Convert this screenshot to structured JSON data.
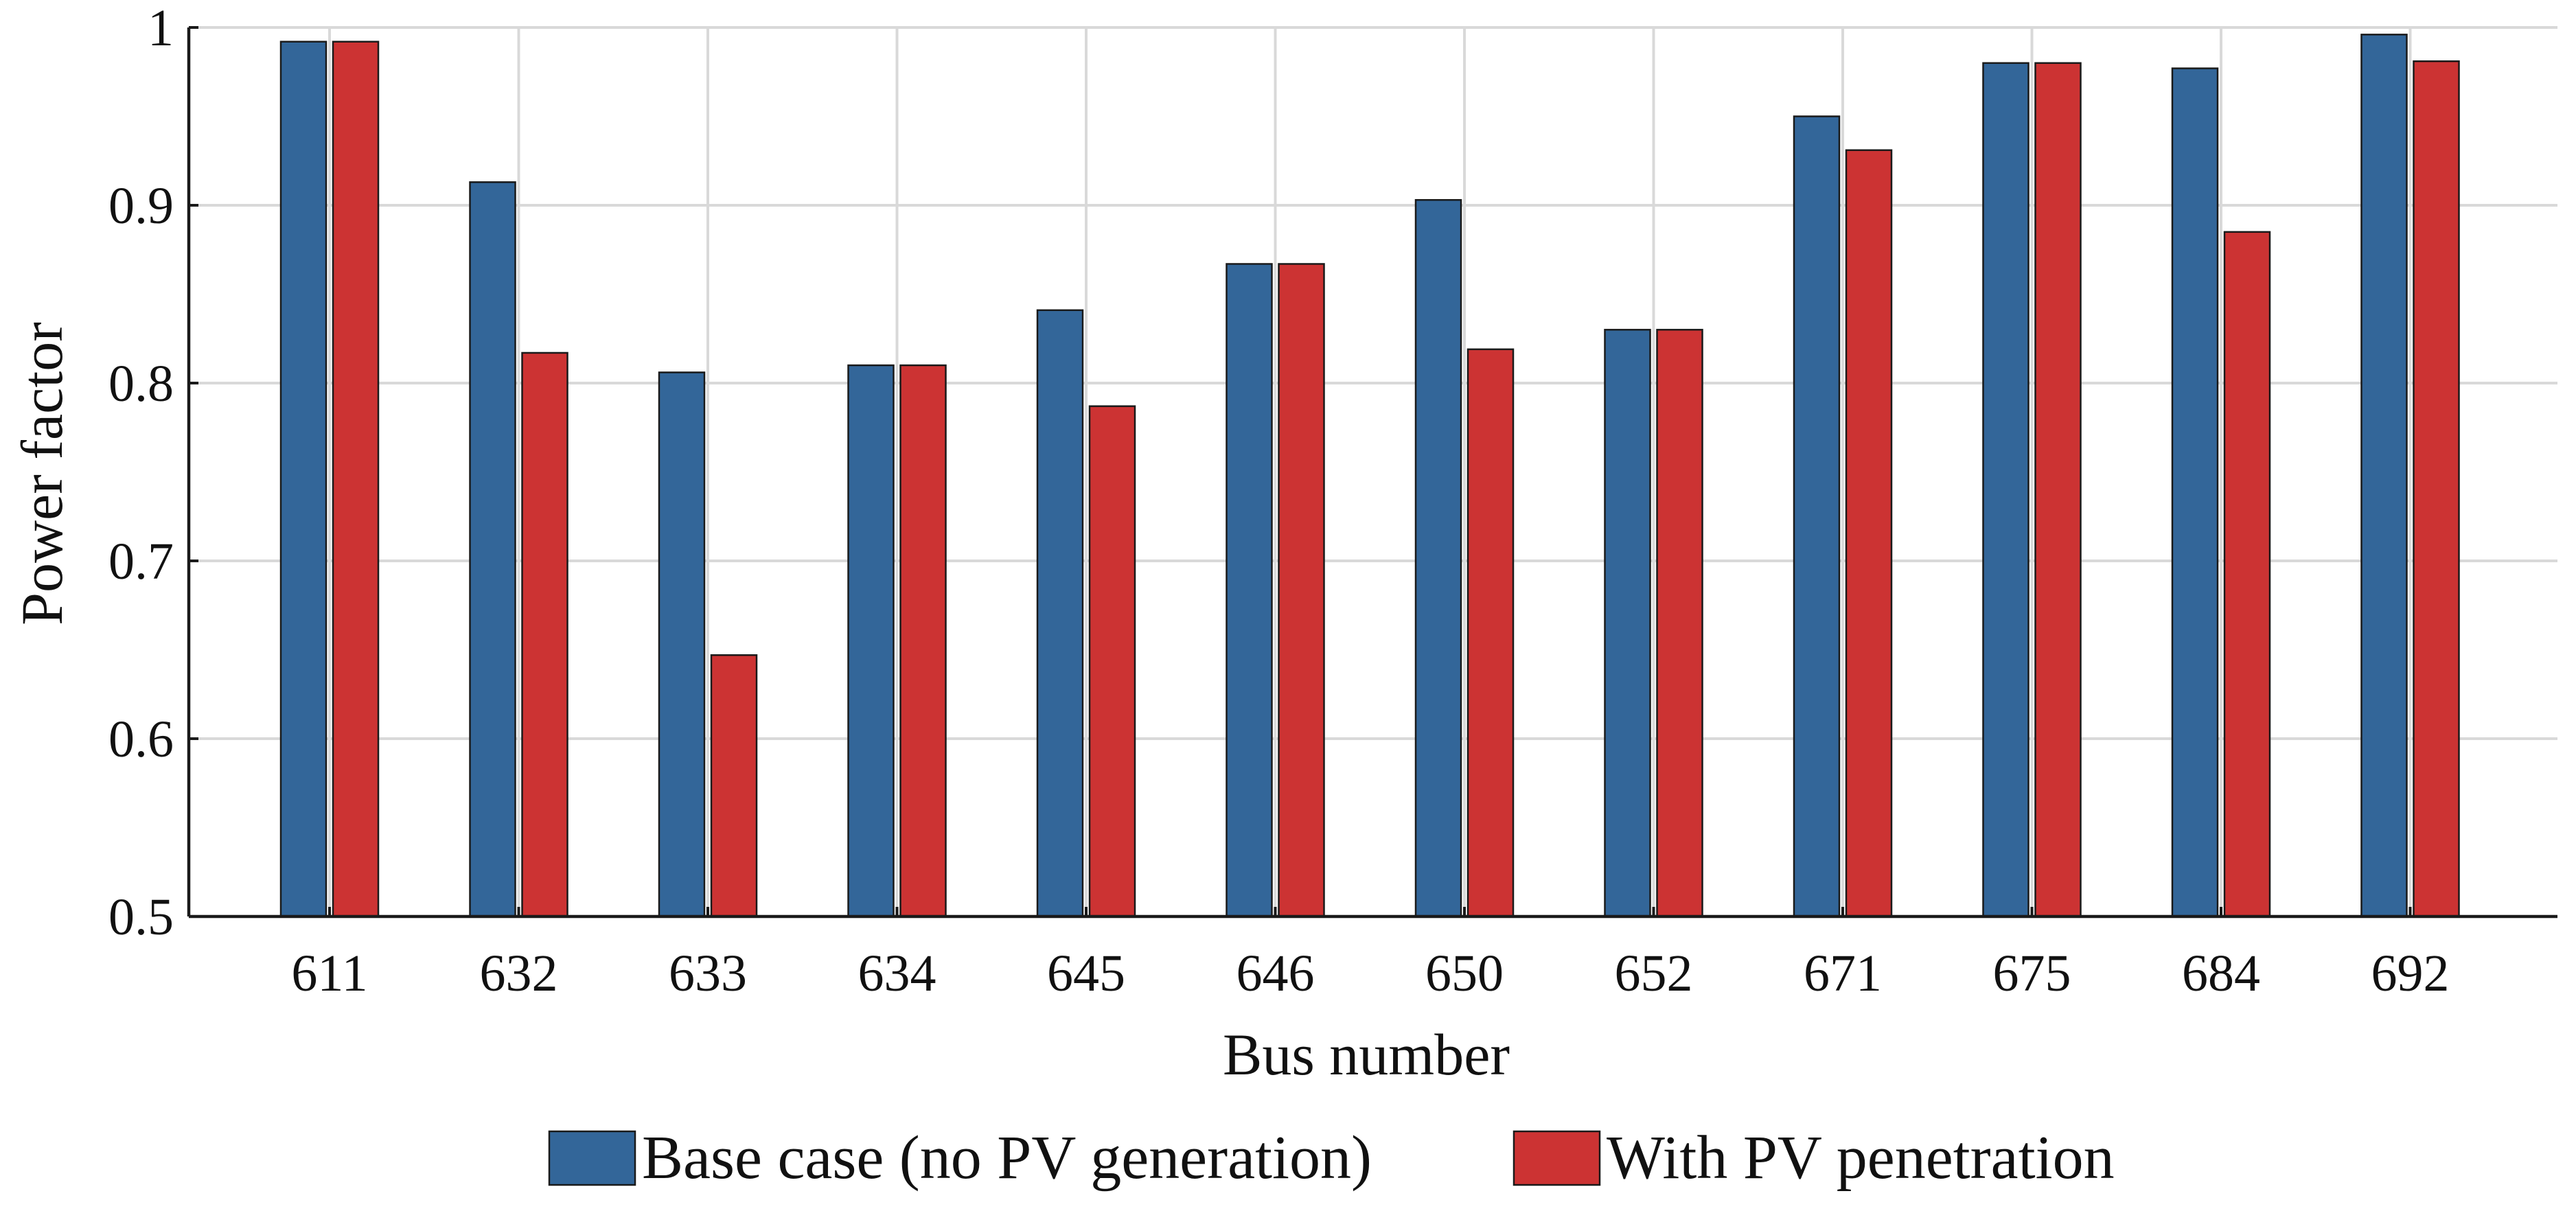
{
  "chart_data": {
    "type": "bar",
    "title": "",
    "xlabel": "Bus number",
    "ylabel": "Power factor",
    "categories": [
      "611",
      "632",
      "633",
      "634",
      "645",
      "646",
      "650",
      "652",
      "671",
      "675",
      "684",
      "692"
    ],
    "series": [
      {
        "name": "Base case (no PV generation)",
        "color": "#336699",
        "values": [
          0.992,
          0.913,
          0.806,
          0.81,
          0.841,
          0.867,
          0.903,
          0.83,
          0.95,
          0.98,
          0.977,
          0.996
        ]
      },
      {
        "name": "With PV penetration",
        "color": "#CC3333",
        "values": [
          0.992,
          0.817,
          0.647,
          0.81,
          0.787,
          0.867,
          0.819,
          0.83,
          0.931,
          0.98,
          0.885,
          0.981
        ]
      }
    ],
    "ylim": [
      0.5,
      1.0
    ],
    "yticks": [
      "0.5",
      "0.6",
      "0.7",
      "0.8",
      "0.9",
      "1"
    ],
    "grid": true,
    "legend_position": "bottom-center"
  }
}
